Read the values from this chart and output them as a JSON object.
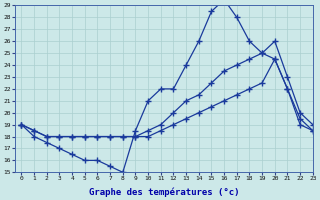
{
  "xlabel": "Graphe des températures (°c)",
  "x_ticks": [
    0,
    1,
    2,
    3,
    4,
    5,
    6,
    7,
    8,
    9,
    10,
    11,
    12,
    13,
    14,
    15,
    16,
    17,
    18,
    19,
    20,
    21,
    22,
    23
  ],
  "ylim": [
    15,
    29
  ],
  "xlim": [
    -0.5,
    23
  ],
  "bg_color": "#cce8e8",
  "grid_color": "#aacfcf",
  "line_color": "#1a3a9c",
  "series1_x": [
    0,
    1,
    2,
    3,
    4,
    5,
    6,
    7,
    8,
    9,
    10,
    11,
    12,
    13,
    14,
    15,
    16,
    17,
    18,
    19,
    20,
    21,
    22,
    23
  ],
  "series1_y": [
    19,
    18,
    17.5,
    17,
    16.5,
    16,
    16,
    15.5,
    15,
    18.5,
    21,
    22,
    22,
    24,
    26,
    28.5,
    29.5,
    28,
    26,
    25,
    24.5,
    22,
    19.5,
    18.5
  ],
  "series2_x": [
    0,
    1,
    2,
    3,
    4,
    5,
    6,
    7,
    8,
    9,
    10,
    11,
    12,
    13,
    14,
    15,
    16,
    17,
    18,
    19,
    20,
    21,
    22,
    23
  ],
  "series2_y": [
    19,
    18.5,
    18,
    18,
    18,
    18,
    18,
    18,
    18,
    18,
    18,
    18.5,
    19,
    19.5,
    20,
    20.5,
    21,
    21.5,
    22,
    22.5,
    24.5,
    22,
    19,
    18.5
  ],
  "series3_x": [
    0,
    1,
    2,
    3,
    4,
    5,
    6,
    7,
    8,
    9,
    10,
    11,
    12,
    13,
    14,
    15,
    16,
    17,
    18,
    19,
    20,
    21,
    22,
    23
  ],
  "series3_y": [
    19,
    18.5,
    18,
    18,
    18,
    18,
    18,
    18,
    18,
    18,
    18.5,
    19,
    20,
    21,
    21.5,
    22.5,
    23.5,
    24,
    24.5,
    25,
    26,
    23,
    20,
    19
  ]
}
